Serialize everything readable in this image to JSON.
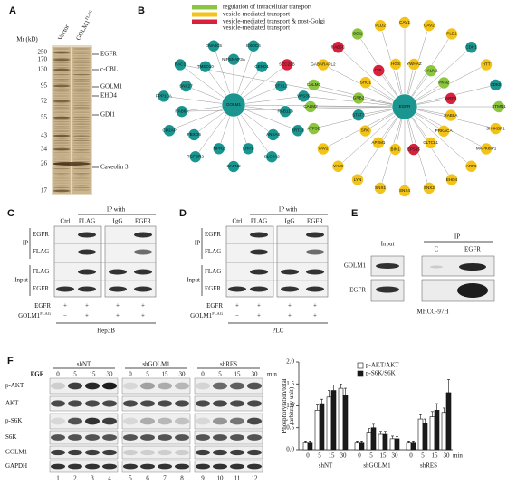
{
  "panel_a": {
    "letter": "A",
    "mr_label": "Mr (kD)",
    "lane_labels": [
      {
        "text": "Vector"
      },
      {
        "text": "GOLM1",
        "sup": "FLAG"
      }
    ],
    "markers": [
      250,
      170,
      130,
      95,
      72,
      55,
      43,
      34,
      26,
      17
    ],
    "proteins": [
      "EGFR",
      "c-CBL",
      "GOLM1",
      "EHD4",
      "GDI1",
      "Caveolin 3"
    ]
  },
  "panel_b": {
    "letter": "B",
    "legend": [
      {
        "lines": [
          "regulation of intracellular transport"
        ],
        "color": "#8cc63e"
      },
      {
        "lines": [
          "vesicle-mediated transport"
        ],
        "color": "#f3c417"
      },
      {
        "lines": [
          "vesicle-mediated transport & post-Golgi",
          "vesicle-mediated transport"
        ],
        "color": "#d9213d"
      }
    ],
    "default_color": "#1b9590",
    "hubs": [
      "GOLM1",
      "EGFR"
    ],
    "golm1_partners": [
      {
        "label": "NIPSNAP3A"
      },
      {
        "label": "EXOC4"
      },
      {
        "label": "CEND1"
      },
      {
        "label": "SEC22B",
        "group": 2
      },
      {
        "label": "STX12"
      },
      {
        "label": "VPS35",
        "also_egfr": true
      },
      {
        "label": "RAB11B"
      },
      {
        "label": "KRT18"
      },
      {
        "label": "ANXA6"
      },
      {
        "label": "SLC3A2"
      },
      {
        "label": "LRP1"
      },
      {
        "label": "CAPN2"
      },
      {
        "label": "NPR2"
      },
      {
        "label": "TGFBR2"
      },
      {
        "label": "FBXO6"
      },
      {
        "label": "CD2AP"
      },
      {
        "label": "RAB6A",
        "also_egfr": true
      },
      {
        "label": "PPP1CA"
      },
      {
        "label": "SNX27"
      },
      {
        "label": "RAC1",
        "also_egfr": true
      },
      {
        "label": "TMED10"
      },
      {
        "label": "DNAJC5"
      }
    ],
    "egfr_partners": [
      {
        "label": "RAB5A",
        "group": 1
      },
      {
        "label": "PRKACA",
        "group": 1
      },
      {
        "label": "CLTCL1",
        "group": 1
      },
      {
        "label": "EPS15",
        "group": 2
      },
      {
        "label": "BIN1",
        "group": 1
      },
      {
        "label": "AP2M1",
        "group": 1
      },
      {
        "label": "SRC",
        "group": 1
      },
      {
        "label": "STAT3"
      },
      {
        "label": "GRB2",
        "group": 0
      },
      {
        "label": "SHC1",
        "group": 1
      },
      {
        "label": "CBL",
        "group": 2
      },
      {
        "label": "HGS",
        "group": 1
      },
      {
        "label": "YWHAZ",
        "group": 1
      },
      {
        "label": "CALM1",
        "group": 0
      },
      {
        "label": "PKN2",
        "group": 0
      },
      {
        "label": "ARF4",
        "group": 2
      },
      {
        "label": "CAV1",
        "group": 1
      },
      {
        "label": "CAV2",
        "group": 1
      },
      {
        "label": "PLD1",
        "group": 1
      },
      {
        "label": "CDH1"
      },
      {
        "label": "HTT",
        "group": 1
      },
      {
        "label": "CDK5"
      },
      {
        "label": "STMN1",
        "group": 0
      },
      {
        "label": "SH3KBP1",
        "group": 1
      },
      {
        "label": "MAPK8IP1",
        "group": 1
      },
      {
        "label": "ARF6",
        "group": 1
      },
      {
        "label": "EHD4",
        "group": 1
      },
      {
        "label": "SNX2",
        "group": 1
      },
      {
        "label": "SNX4",
        "group": 1
      },
      {
        "label": "SNX1",
        "group": 1
      },
      {
        "label": "LYN",
        "group": 1
      },
      {
        "label": "VAV3",
        "group": 1
      },
      {
        "label": "VAV2",
        "group": 1
      },
      {
        "label": "ATP5B",
        "group": 0
      },
      {
        "label": "CALM2",
        "group": 0
      },
      {
        "label": "CALM3",
        "group": 0
      },
      {
        "label": "GABARAPL2",
        "group": 1
      },
      {
        "label": "RAB5C",
        "group": 2
      },
      {
        "label": "GDI1",
        "group": 0
      },
      {
        "label": "PLD2",
        "group": 1
      }
    ]
  },
  "panel_c": {
    "letter": "C",
    "ip_with": "IP with",
    "columns": [
      "Ctrl",
      "FLAG",
      "IgG",
      "EGFR"
    ],
    "groups": [
      {
        "name": "IP",
        "rows": [
          "EGFR",
          "FLAG"
        ]
      },
      {
        "name": "Input",
        "rows": [
          "FLAG",
          "EGFR"
        ]
      }
    ],
    "conditions": [
      {
        "label": "EGFR",
        "signs": [
          "+",
          "+",
          "+",
          "+"
        ]
      },
      {
        "label": "GOLM1",
        "sup": "FLAG",
        "signs": [
          "−",
          "+",
          "+",
          "+"
        ]
      }
    ],
    "cell_line": "Hep3B"
  },
  "panel_d": {
    "letter": "D",
    "ip_with": "IP with",
    "columns": [
      "Ctrl",
      "FLAG",
      "IgG",
      "EGFR"
    ],
    "groups": [
      {
        "name": "IP",
        "rows": [
          "EGFR",
          "FLAG"
        ]
      },
      {
        "name": "Input",
        "rows": [
          "FLAG",
          "EGFR"
        ]
      }
    ],
    "conditions": [
      {
        "label": "EGFR",
        "signs": [
          "+",
          "+",
          "+",
          "+"
        ]
      },
      {
        "label": "GOLM1",
        "sup": "FLAG",
        "signs": [
          "−",
          "+",
          "+",
          "+"
        ]
      }
    ],
    "cell_line": "PLC"
  },
  "panel_e": {
    "letter": "E",
    "input": "Input",
    "ip": "IP",
    "ip_columns": [
      "C",
      "EGFR"
    ],
    "rows": [
      "GOLM1",
      "EGFR"
    ],
    "cell_line": "MHCC-97H"
  },
  "panel_f": {
    "letter": "F",
    "treatment": "EGF",
    "rows": [
      "p-AKT",
      "AKT",
      "p-S6K",
      "S6K",
      "GOLM1",
      "GAPDH"
    ],
    "lanes": [
      1,
      2,
      3,
      4,
      5,
      6,
      7,
      8,
      9,
      10,
      11,
      12
    ]
  },
  "chart_data": {
    "type": "bar",
    "y_label": [
      "Phosphorylation/total",
      "(arbitrary unit)"
    ],
    "groups": [
      "shNT",
      "shGOLM1",
      "shRES"
    ],
    "times": [
      0,
      5,
      15,
      30
    ],
    "time_unit": "min",
    "series": [
      {
        "name": "p-AKT/AKT",
        "color": "#ffffff",
        "values": [
          0.15,
          0.9,
          1.2,
          1.4,
          0.15,
          0.4,
          0.35,
          0.25,
          0.15,
          0.7,
          0.75,
          0.85
        ],
        "errors": [
          0.05,
          0.12,
          0.15,
          0.1,
          0.05,
          0.08,
          0.07,
          0.06,
          0.05,
          0.1,
          0.12,
          0.1
        ]
      },
      {
        "name": "p-S6K/S6K",
        "color": "#1a1a1a",
        "values": [
          0.15,
          1.05,
          1.35,
          1.25,
          0.15,
          0.5,
          0.35,
          0.25,
          0.15,
          0.6,
          0.9,
          1.3
        ],
        "errors": [
          0.05,
          0.1,
          0.12,
          0.15,
          0.05,
          0.08,
          0.07,
          0.05,
          0.05,
          0.1,
          0.15,
          0.3
        ]
      }
    ],
    "ylim": [
      0,
      2
    ],
    "yticks": [
      {
        "value": 0,
        "label": "0.0"
      },
      {
        "value": 0.5,
        "label": "0.5"
      },
      {
        "value": 1,
        "label": "1.0"
      },
      {
        "value": 1.5,
        "label": "1.5"
      },
      {
        "value": 2,
        "label": "2.0"
      }
    ]
  }
}
